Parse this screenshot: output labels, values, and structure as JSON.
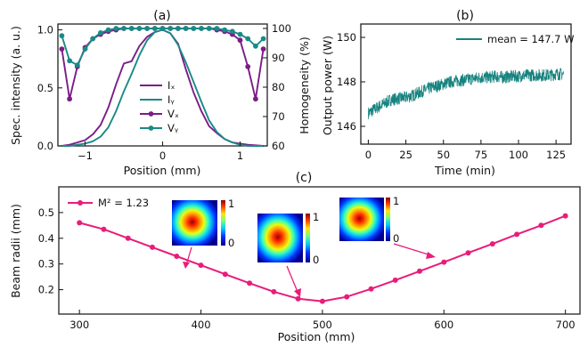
{
  "colors": {
    "purple": "#7b1d86",
    "teal": "#1a8a86",
    "teal_noisy": "#17837f",
    "magenta": "#e91c7a"
  },
  "chart_data": [
    {
      "panel": "(a)",
      "type": "line",
      "title": "(a)",
      "xlabel": "Position (mm)",
      "ylabel": "Spec. intensity (a. u.)",
      "ylabel_right": "Homogeneity (%)",
      "xlim": [
        -1.35,
        1.35
      ],
      "ylim": [
        0,
        1.05
      ],
      "ylim_right": [
        60,
        101.5
      ],
      "xticks": [
        -1,
        0,
        1
      ],
      "xtick_labels": [
        "−1",
        "0",
        "1"
      ],
      "yticks": [
        0.0,
        0.5,
        1.0
      ],
      "ytick_labels": [
        "0.0",
        "0.5",
        "1.0"
      ],
      "yticks_right": [
        60,
        70,
        80,
        90,
        100
      ],
      "ytick_labels_right": [
        "60",
        "70",
        "80",
        "90",
        "100"
      ],
      "legend_position": "lower-center",
      "legend": [
        "Iₓ",
        "Iᵧ",
        "Vₓ",
        "Vᵧ"
      ],
      "series": [
        {
          "name": "Iₓ",
          "axis": "left",
          "color": "purple",
          "marker": false,
          "x": [
            -1.3,
            -1.2,
            -1.1,
            -1.0,
            -0.9,
            -0.8,
            -0.7,
            -0.6,
            -0.5,
            -0.4,
            -0.3,
            -0.2,
            -0.1,
            0.0,
            0.1,
            0.2,
            0.3,
            0.4,
            0.5,
            0.6,
            0.7,
            0.8,
            0.9,
            1.0,
            1.1,
            1.2,
            1.3
          ],
          "y": [
            0.0,
            0.01,
            0.03,
            0.05,
            0.1,
            0.18,
            0.33,
            0.53,
            0.71,
            0.73,
            0.86,
            0.94,
            0.98,
            1.0,
            0.97,
            0.88,
            0.66,
            0.46,
            0.3,
            0.17,
            0.11,
            0.06,
            0.03,
            0.02,
            0.01,
            0.005,
            0.0
          ]
        },
        {
          "name": "Iᵧ",
          "axis": "left",
          "color": "teal",
          "marker": false,
          "x": [
            -1.3,
            -1.2,
            -1.1,
            -1.0,
            -0.9,
            -0.8,
            -0.7,
            -0.6,
            -0.5,
            -0.4,
            -0.3,
            -0.2,
            -0.1,
            0.0,
            0.1,
            0.2,
            0.3,
            0.4,
            0.5,
            0.6,
            0.7,
            0.8,
            0.9,
            1.0,
            1.1,
            1.2,
            1.3
          ],
          "y": [
            0.0,
            0.0,
            0.01,
            0.02,
            0.04,
            0.08,
            0.16,
            0.3,
            0.47,
            0.62,
            0.78,
            0.91,
            0.98,
            1.0,
            0.97,
            0.87,
            0.72,
            0.55,
            0.38,
            0.22,
            0.12,
            0.06,
            0.03,
            0.01,
            0.0,
            0.0,
            0.0
          ]
        },
        {
          "name": "Vₓ",
          "axis": "right",
          "color": "purple",
          "marker": true,
          "x": [
            -1.3,
            -1.2,
            -1.1,
            -1.0,
            -0.9,
            -0.8,
            -0.7,
            -0.6,
            -0.5,
            -0.4,
            -0.3,
            -0.2,
            -0.1,
            0.0,
            0.1,
            0.2,
            0.3,
            0.4,
            0.5,
            0.6,
            0.7,
            0.8,
            0.9,
            1.0,
            1.1,
            1.2,
            1.3
          ],
          "y": [
            93,
            76,
            87,
            93.5,
            96.5,
            98,
            99,
            99.5,
            100,
            100,
            100,
            100,
            100,
            100,
            100,
            100,
            100,
            100,
            100,
            100,
            99.5,
            99,
            98,
            96,
            87,
            76,
            93
          ]
        },
        {
          "name": "Vᵧ",
          "axis": "right",
          "color": "teal",
          "marker": true,
          "x": [
            -1.3,
            -1.2,
            -1.1,
            -1.0,
            -0.9,
            -0.8,
            -0.7,
            -0.6,
            -0.5,
            -0.4,
            -0.3,
            -0.2,
            -0.1,
            0.0,
            0.1,
            0.2,
            0.3,
            0.4,
            0.5,
            0.6,
            0.7,
            0.8,
            0.9,
            1.0,
            1.1,
            1.2,
            1.3
          ],
          "y": [
            97.5,
            89,
            87.5,
            93,
            96.5,
            98.5,
            99.5,
            100,
            100,
            100,
            100,
            100,
            100,
            100,
            100,
            100,
            100,
            100,
            100,
            100,
            100,
            99.5,
            99,
            98,
            96.5,
            94,
            96.5
          ]
        }
      ]
    },
    {
      "panel": "(b)",
      "type": "line",
      "title": "(b)",
      "xlabel": "Time (min)",
      "ylabel": "Output power (W)",
      "xlim": [
        -5,
        135
      ],
      "ylim": [
        145.2,
        150.6
      ],
      "xticks": [
        0,
        25,
        50,
        75,
        100,
        125
      ],
      "xtick_labels": [
        "0",
        "25",
        "50",
        "75",
        "100",
        "125"
      ],
      "yticks": [
        146,
        148,
        150
      ],
      "ytick_labels": [
        "146",
        "148",
        "150"
      ],
      "legend_position": "top-right",
      "series": [
        {
          "name": "mean = 147.7 W",
          "color": "teal_noisy",
          "noise_amplitude_W": 0.55,
          "x": [
            0,
            5,
            10,
            15,
            20,
            25,
            30,
            35,
            40,
            45,
            50,
            55,
            60,
            65,
            70,
            75,
            80,
            85,
            90,
            95,
            100,
            105,
            110,
            115,
            120,
            125,
            130
          ],
          "y": [
            146.6,
            146.8,
            147.0,
            147.2,
            147.25,
            147.3,
            147.4,
            147.55,
            147.7,
            147.8,
            147.9,
            148.0,
            148.05,
            148.1,
            148.15,
            148.2,
            148.2,
            148.25,
            148.2,
            148.25,
            148.25,
            148.3,
            148.3,
            148.3,
            148.3,
            148.35,
            148.35
          ]
        }
      ]
    },
    {
      "panel": "(c)",
      "type": "line",
      "title": "(c)",
      "xlabel": "Position (mm)",
      "ylabel": "Beam radii (mm)",
      "xlim": [
        283,
        712
      ],
      "ylim": [
        0.105,
        0.6
      ],
      "xticks": [
        300,
        400,
        500,
        600,
        700
      ],
      "xtick_labels": [
        "300",
        "400",
        "500",
        "600",
        "700"
      ],
      "yticks": [
        0.2,
        0.3,
        0.4,
        0.5
      ],
      "ytick_labels": [
        "0.2",
        "0.3",
        "0.4",
        "0.5"
      ],
      "legend_position": "top-left",
      "series": [
        {
          "name": "M² = 1.23",
          "color": "magenta",
          "marker": true,
          "x": [
            300,
            320,
            340,
            360,
            380,
            400,
            420,
            440,
            460,
            480,
            500,
            520,
            540,
            560,
            580,
            600,
            620,
            640,
            660,
            680,
            700
          ],
          "y": [
            0.46,
            0.435,
            0.4,
            0.365,
            0.33,
            0.295,
            0.26,
            0.225,
            0.192,
            0.165,
            0.155,
            0.172,
            0.203,
            0.237,
            0.272,
            0.307,
            0.343,
            0.378,
            0.415,
            0.45,
            0.487
          ]
        }
      ],
      "insets": [
        {
          "name": "beam-profile-left",
          "colorbar_max": "1",
          "colorbar_min": "0"
        },
        {
          "name": "beam-profile-middle",
          "colorbar_max": "1",
          "colorbar_min": "0"
        },
        {
          "name": "beam-profile-right",
          "colorbar_max": "1",
          "colorbar_min": "0"
        }
      ]
    }
  ]
}
